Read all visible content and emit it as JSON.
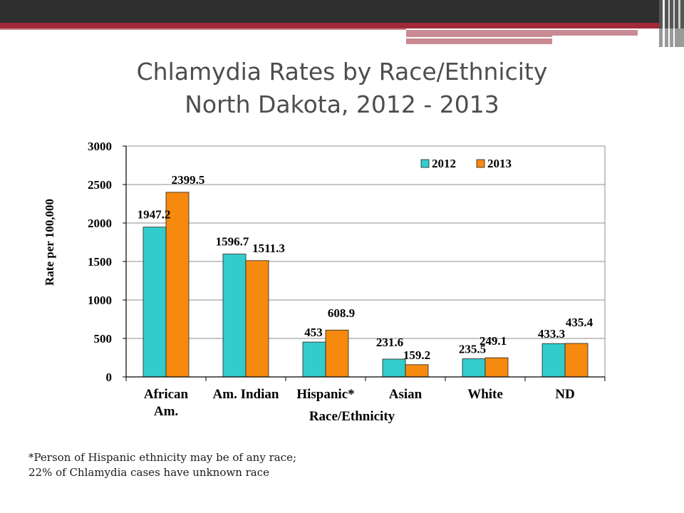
{
  "slide": {
    "title_line1": "Chlamydia Rates by Race/Ethnicity",
    "title_line2": "North Dakota, 2012 - 2013",
    "footnote_line1": "*Person of Hispanic ethnicity may be of any race;",
    "footnote_line2": "22% of Chlamydia cases have unknown race"
  },
  "colors": {
    "header_bar": "#2e2e2e",
    "accent": "#a3283a",
    "series_2012": "#33cccc",
    "series_2013": "#f58a0f"
  },
  "chart_data": {
    "type": "bar",
    "categories": [
      "African Am.",
      "Am. Indian",
      "Hispanic*",
      "Asian",
      "White",
      "ND"
    ],
    "category_label_lines": [
      [
        "African",
        "Am."
      ],
      [
        "Am. Indian"
      ],
      [
        "Hispanic*"
      ],
      [
        "Asian"
      ],
      [
        "White"
      ],
      [
        "ND"
      ]
    ],
    "series": [
      {
        "name": "2012",
        "values": [
          1947.2,
          1596.7,
          453,
          231.6,
          235.5,
          433.3
        ],
        "labels": [
          "1947.2",
          "1596.7",
          "453",
          "231.6",
          "235.5",
          "433.3"
        ],
        "color": "#33cccc"
      },
      {
        "name": "2013",
        "values": [
          2399.5,
          1511.3,
          608.9,
          159.2,
          249.1,
          435.4
        ],
        "labels": [
          "2399.5",
          "1511.3",
          "608.9",
          "159.2",
          "249.1",
          "435.4"
        ],
        "color": "#f58a0f"
      }
    ],
    "xlabel": "Race/Ethnicity",
    "ylabel": "Rate per 100,000",
    "ylim": [
      0,
      3000
    ],
    "yticks": [
      0,
      500,
      1000,
      1500,
      2000,
      2500,
      3000
    ],
    "grid": true,
    "legend_position": "top-right"
  }
}
